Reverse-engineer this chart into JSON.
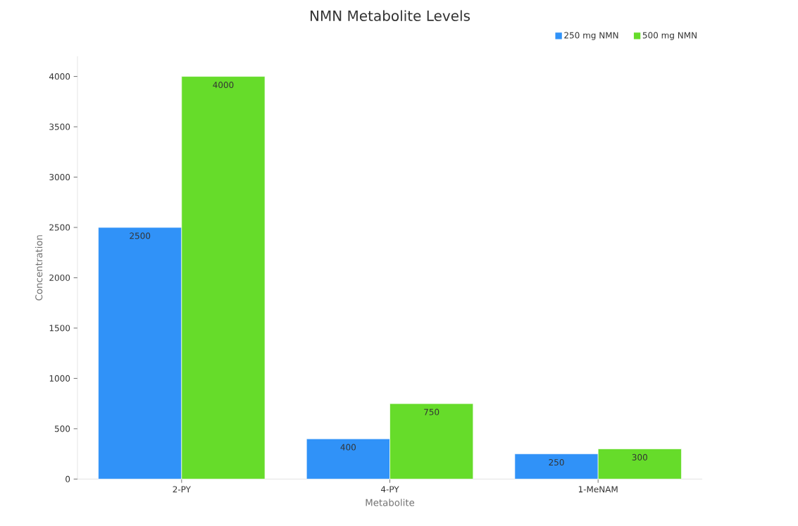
{
  "chart_data": {
    "type": "bar",
    "title": "NMN Metabolite Levels",
    "xlabel": "Metabolite",
    "ylabel": "Concentration",
    "categories": [
      "2-PY",
      "4-PY",
      "1-MeNAM"
    ],
    "series": [
      {
        "name": "250 mg NMN",
        "color": "#3092f8",
        "values": [
          2500,
          400,
          250
        ]
      },
      {
        "name": "500 mg NMN",
        "color": "#66dc2a",
        "values": [
          4000,
          750,
          300
        ]
      }
    ],
    "ylim": [
      0,
      4200
    ],
    "yticks": [
      0,
      500,
      1000,
      1500,
      2000,
      2500,
      3000,
      3500,
      4000
    ],
    "data_labels": true,
    "legend": "top right"
  }
}
